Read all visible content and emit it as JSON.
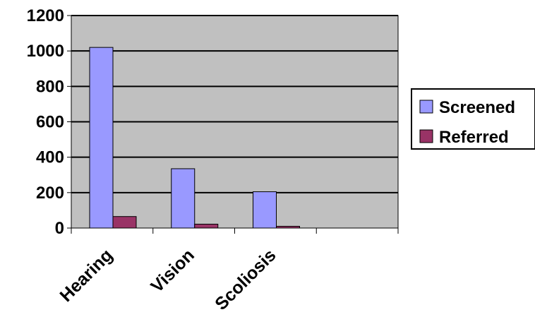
{
  "chart_data": {
    "type": "bar",
    "categories": [
      "Hearing",
      "Vision",
      "Scoliosis",
      ""
    ],
    "series": [
      {
        "name": "Screened",
        "values": [
          1020,
          335,
          205,
          null
        ],
        "color": "#9999ff"
      },
      {
        "name": "Referred",
        "values": [
          65,
          22,
          10,
          null
        ],
        "color": "#993366"
      }
    ],
    "title": "",
    "xlabel": "",
    "ylabel": "",
    "ylim": [
      0,
      1200
    ],
    "yticks": [
      "0",
      "200",
      "400",
      "600",
      "800",
      "1000",
      "1200"
    ],
    "grid": true,
    "plot_background": "#c0c0c0",
    "legend_position": "right"
  }
}
